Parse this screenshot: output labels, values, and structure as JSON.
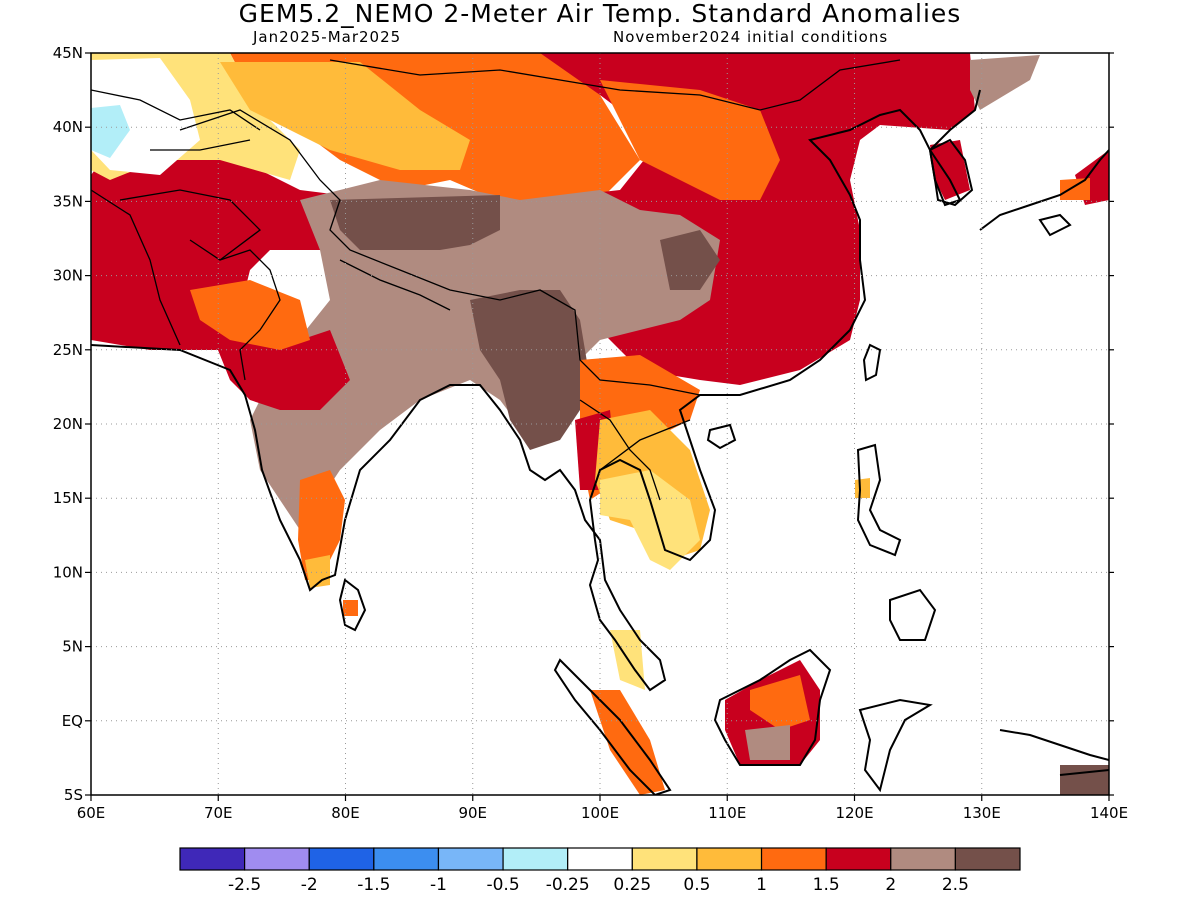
{
  "header": {
    "title": "GEM5.2_NEMO 2-Meter Air Temp. Standard Anomalies",
    "period": "Jan2025-Mar2025",
    "init": "November2024 initial conditions"
  },
  "map": {
    "lat_range": [
      -5,
      45
    ],
    "lon_range": [
      60,
      140
    ],
    "lat_labels": [
      "45N",
      "40N",
      "35N",
      "30N",
      "25N",
      "20N",
      "15N",
      "10N",
      "5N",
      "EQ",
      "5S"
    ],
    "lon_labels": [
      "60E",
      "70E",
      "80E",
      "90E",
      "100E",
      "110E",
      "120E",
      "130E",
      "140E"
    ]
  },
  "colorbar": {
    "colors": [
      "#3f28b8",
      "#a08cf0",
      "#1f63e6",
      "#3c8ef0",
      "#78b6f8",
      "#b2eef8",
      "#ffffff",
      "#ffe27a",
      "#ffbb3a",
      "#ff6a10",
      "#c8001e",
      "#b08b80",
      "#74504a"
    ],
    "labels": [
      "-2.5",
      "-2",
      "-1.5",
      "-1",
      "-0.5",
      "-0.25",
      "0.25",
      "0.5",
      "1",
      "1.5",
      "2",
      "2.5"
    ]
  }
}
